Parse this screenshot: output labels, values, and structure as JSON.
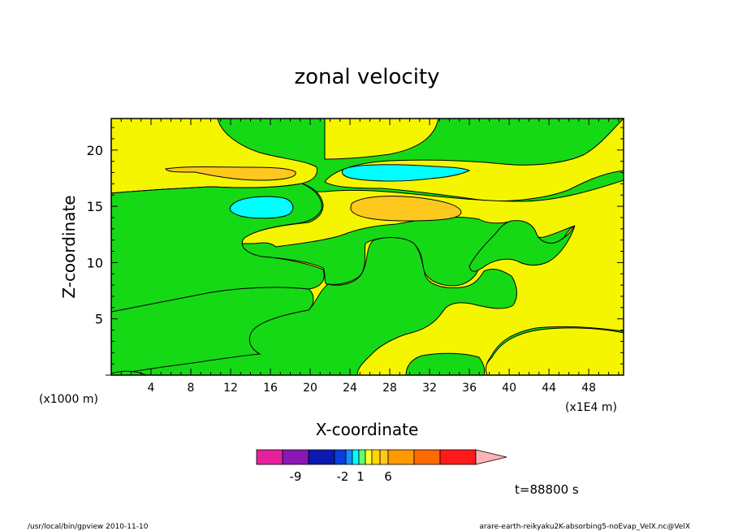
{
  "chart_data": {
    "type": "heatmap",
    "title": "zonal velocity",
    "xlabel": "X-coordinate",
    "ylabel": "Z-coordinate",
    "x_unit_left": "(x1000 m)",
    "x_unit_right": "(x1E4 m)",
    "xlim": [
      0,
      51.5
    ],
    "ylim": [
      0,
      22.8
    ],
    "x_ticks": [
      4,
      8,
      12,
      16,
      20,
      24,
      28,
      32,
      36,
      40,
      44,
      48
    ],
    "y_ticks": [
      5,
      10,
      15,
      20
    ],
    "colorbar": {
      "colors": [
        "#e6209c",
        "#8a17b4",
        "#0a19b0",
        "#0b3ed8",
        "#1a8cff",
        "#00ffff",
        "#66ff66",
        "#ffff33",
        "#ffd700",
        "#ffc81e",
        "#ff9a00",
        "#ff6a00",
        "#ff1a1a",
        "#ff7a7a",
        "#ffb4b4"
      ],
      "labels": [
        "-9",
        "-2",
        "1",
        "6"
      ]
    },
    "time_label": "t=88800 s",
    "regions": [
      {
        "level": "yellow",
        "color": "#f5f500"
      },
      {
        "level": "green",
        "color": "#16d916"
      },
      {
        "level": "cyan",
        "color": "#00ffff"
      },
      {
        "level": "orange",
        "color": "#ffc81e"
      }
    ]
  },
  "footer": {
    "left": "/usr/local/bin/gpview   2010-11-10",
    "right": "arare-earth-reikyaku2K-absorbing5-noEvap_VelX.nc@VelX"
  }
}
